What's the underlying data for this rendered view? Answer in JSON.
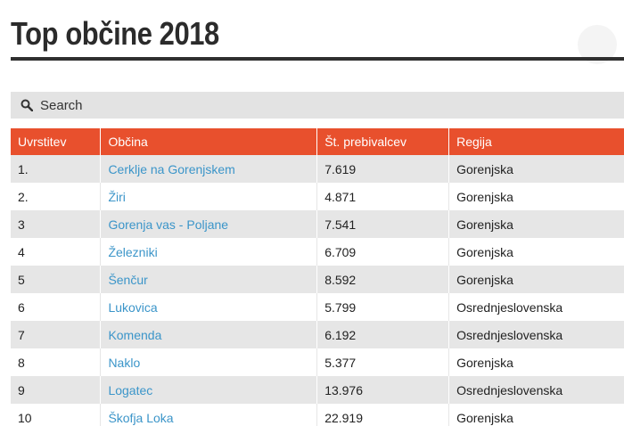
{
  "page": {
    "title": "Top občine 2018"
  },
  "search": {
    "label": "Search"
  },
  "table": {
    "headers": [
      "Uvrstitev",
      "Občina",
      "Št. prebivalcev",
      "Regija"
    ],
    "rows": [
      {
        "rank": "1.",
        "name": "Cerklje na Gorenjskem",
        "population": "7.619",
        "region": "Gorenjska"
      },
      {
        "rank": "2.",
        "name": "Žiri",
        "population": "4.871",
        "region": "Gorenjska"
      },
      {
        "rank": "3",
        "name": "Gorenja vas - Poljane",
        "population": "7.541",
        "region": "Gorenjska"
      },
      {
        "rank": "4",
        "name": "Železniki",
        "population": "6.709",
        "region": "Gorenjska"
      },
      {
        "rank": "5",
        "name": "Šenčur",
        "population": "8.592",
        "region": "Gorenjska"
      },
      {
        "rank": "6",
        "name": "Lukovica",
        "population": "5.799",
        "region": "Osrednjeslovenska"
      },
      {
        "rank": "7",
        "name": "Komenda",
        "population": "6.192",
        "region": "Osrednjeslovenska"
      },
      {
        "rank": "8",
        "name": "Naklo",
        "population": "5.377",
        "region": "Gorenjska"
      },
      {
        "rank": "9",
        "name": "Logatec",
        "population": "13.976",
        "region": "Osrednjeslovenska"
      },
      {
        "rank": "10",
        "name": "Škofja Loka",
        "population": "22.919",
        "region": "Gorenjska"
      }
    ]
  },
  "icons": {
    "search": "search-icon"
  },
  "colors": {
    "header_bg": "#e8502d",
    "link": "#3b95c9",
    "stripe": "#e6e6e6"
  }
}
